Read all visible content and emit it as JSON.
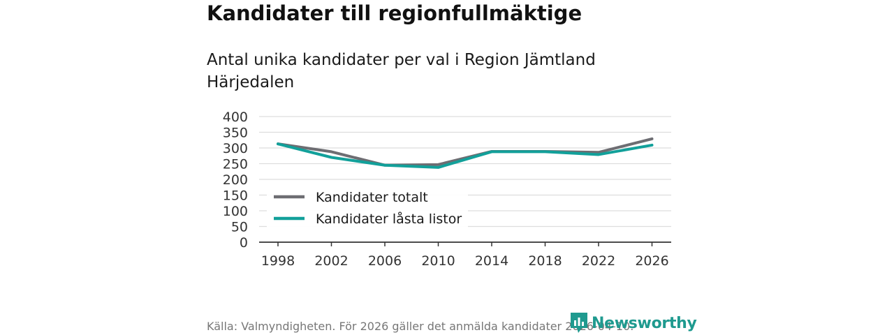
{
  "title": "Kandidater till regionfullmäktige",
  "subtitle": "Antal unika kandidater per val i Region Jämtland Härjedalen",
  "source": "Källa: Valmyndigheten. För 2026 gäller det anmälda kandidater 2026-04-10.",
  "brand": {
    "name": "Newsworthy",
    "icon": "newsworthy-logo-icon",
    "color": "#1f9a8f"
  },
  "chart_data": {
    "type": "line",
    "x": [
      "1998",
      "2002",
      "2006",
      "2010",
      "2014",
      "2018",
      "2022",
      "2026"
    ],
    "series": [
      {
        "name": "Kandidater totalt",
        "color": "#6d6d72",
        "values": [
          313,
          288,
          245,
          247,
          289,
          289,
          286,
          329
        ]
      },
      {
        "name": "Kandidater låsta listor",
        "color": "#12a09a",
        "values": [
          313,
          270,
          245,
          238,
          288,
          288,
          279,
          309
        ]
      }
    ],
    "yticks": [
      "0",
      "50",
      "100",
      "150",
      "200",
      "250",
      "300",
      "350",
      "400"
    ],
    "ylim": [
      0,
      400
    ],
    "xlabel": "",
    "ylabel": "",
    "grid": true,
    "legend": "center-left"
  }
}
